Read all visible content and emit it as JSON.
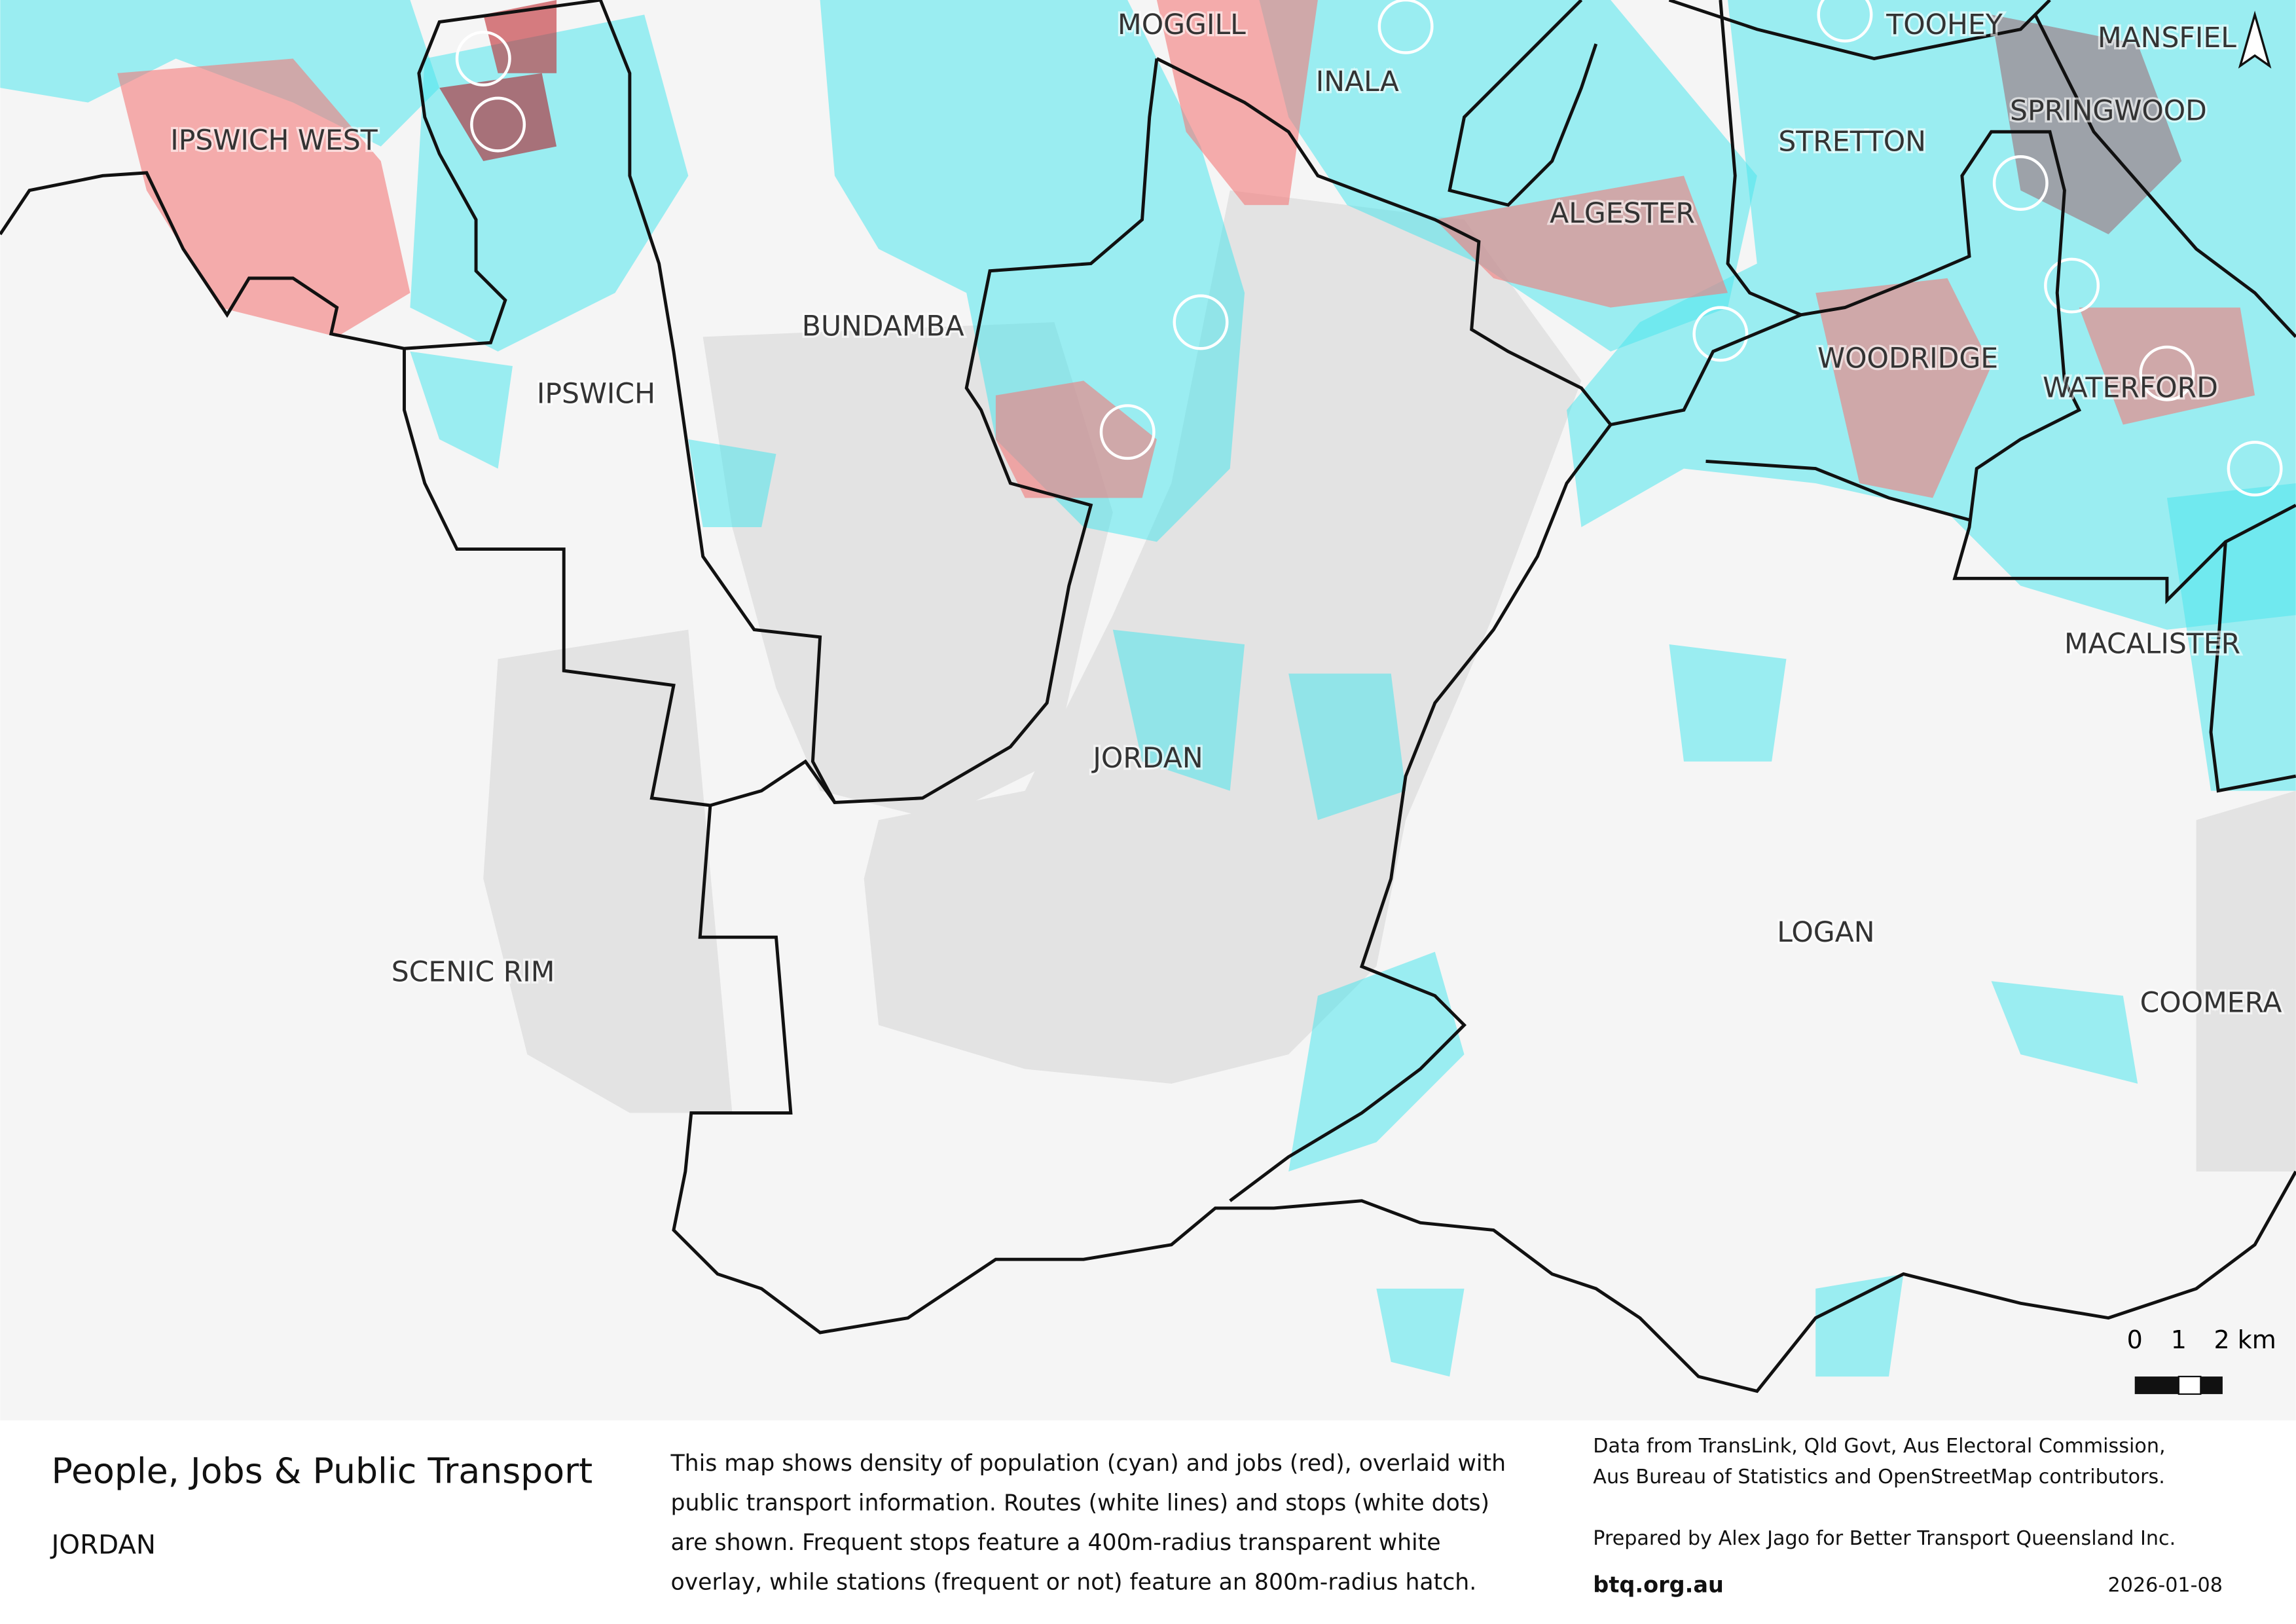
{
  "map": {
    "labels": [
      "IPSWICH WEST",
      "MOGGILL",
      "INALA",
      "TOOHEY",
      "MANSFIEL",
      "SPRINGWOOD",
      "STRETTON",
      "ALGESTER",
      "BUNDAMBA",
      "IPSWICH",
      "WOODRIDGE",
      "WATERFORD",
      "MACALISTER",
      "JORDAN",
      "LOGAN",
      "SCENIC RIM",
      "COOMERA"
    ]
  },
  "scale_bar": {
    "labels": [
      "0",
      "1",
      "2 km"
    ]
  },
  "footer": {
    "title": "People, Jobs & Public Transport",
    "subtitle": "JORDAN",
    "description": [
      "This map shows density of population (cyan) and jobs (red), overlaid with",
      "public transport information. Routes (white lines) and stops (white dots)",
      "are shown. Frequent stops feature a 400m-radius transparent white",
      "overlay, while stations (frequent or not) feature an 800m-radius hatch."
    ],
    "credits": [
      "Data from TransLink,  Qld Govt,  Aus Electoral Commission,",
      "Aus Bureau of Statistics and OpenStreetMap contributors."
    ],
    "prepared": "Prepared by Alex Jago for Better Transport Queensland Inc.",
    "website": "btq.org.au",
    "date": "2026-01-08"
  }
}
